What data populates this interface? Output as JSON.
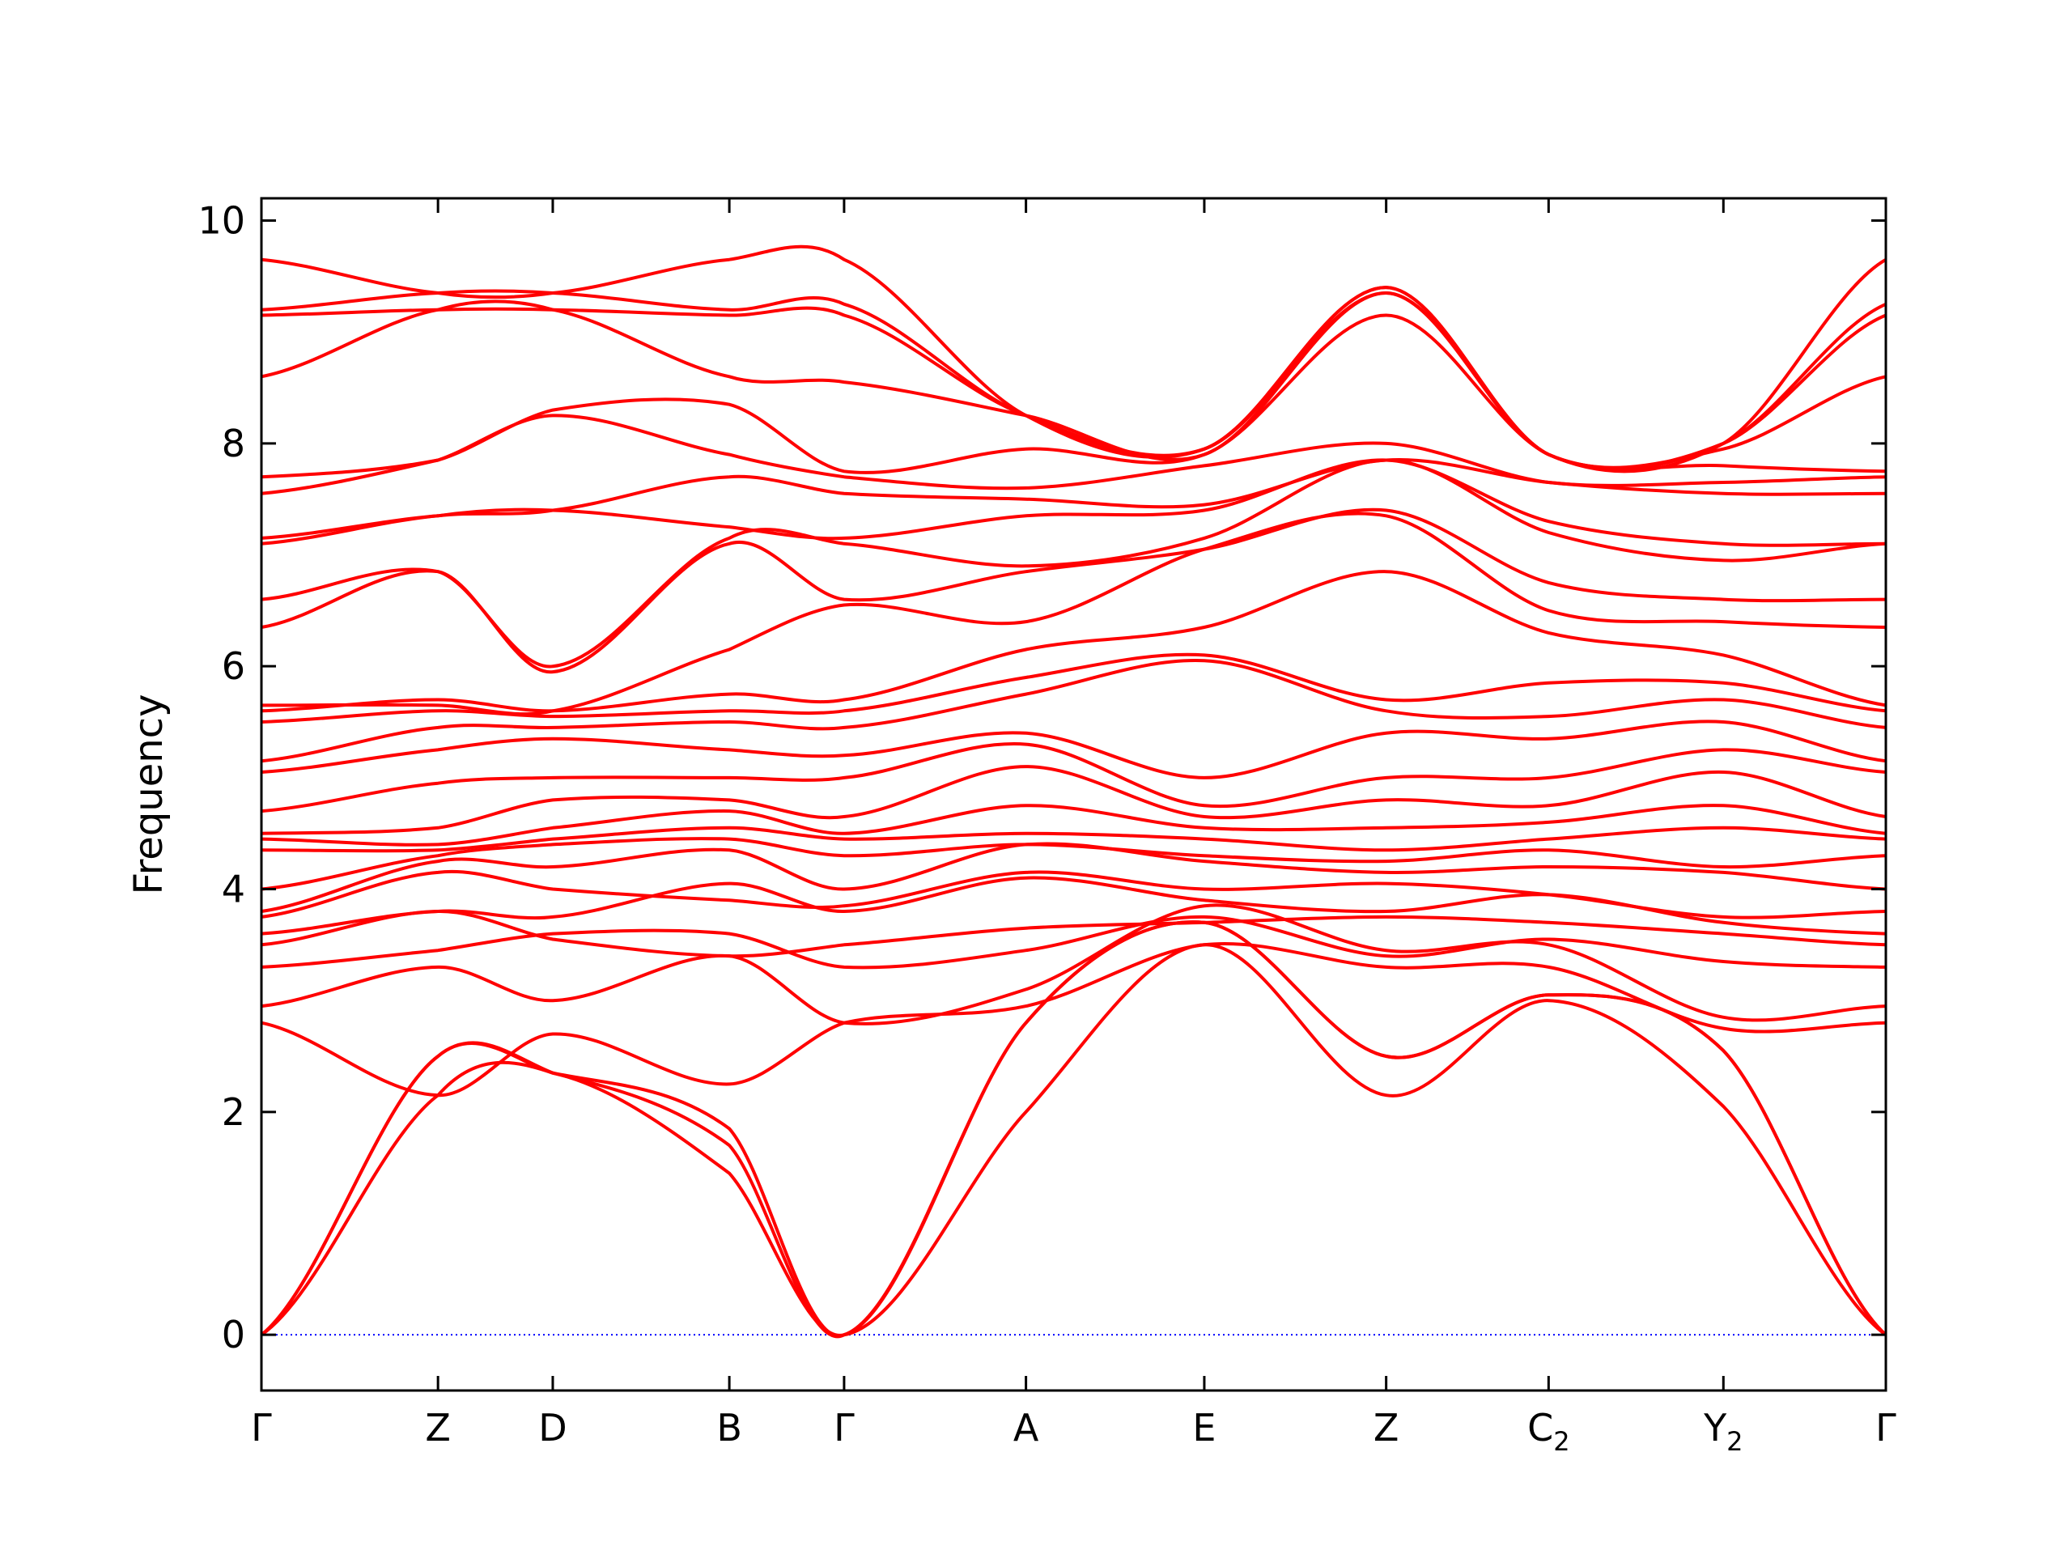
{
  "chart_data": {
    "type": "line",
    "title": "",
    "xlabel": "",
    "ylabel": "Frequency",
    "ylim": [
      -0.5,
      10.2
    ],
    "yticks": [
      0,
      2,
      4,
      6,
      8,
      10
    ],
    "ytick_labels": [
      "0",
      "2",
      "4",
      "6",
      "8",
      "10"
    ],
    "grid": false,
    "legend": "none",
    "line_color": "#ff0000",
    "zero_line_color": "#0000ff",
    "kpoints": [
      {
        "base": "Γ",
        "sub": "",
        "x": 0
      },
      {
        "base": "Z",
        "sub": "",
        "x": 1
      },
      {
        "base": "D",
        "sub": "",
        "x": 1.65
      },
      {
        "base": "B",
        "sub": "",
        "x": 2.65
      },
      {
        "base": "Γ",
        "sub": "",
        "x": 3.3
      },
      {
        "base": "A",
        "sub": "",
        "x": 4.33
      },
      {
        "base": "E",
        "sub": "",
        "x": 5.34
      },
      {
        "base": "Z",
        "sub": "",
        "x": 6.37
      },
      {
        "base": "C",
        "sub": "2",
        "x": 7.29
      },
      {
        "base": "Y",
        "sub": "2",
        "x": 8.28
      },
      {
        "base": "Γ",
        "sub": "",
        "x": 9.2
      }
    ],
    "series": [
      {
        "y": [
          0,
          2.15,
          2.35,
          1.45,
          0,
          2.0,
          3.5,
          2.15,
          3.0,
          2.05,
          0
        ]
      },
      {
        "y": [
          0,
          2.5,
          2.35,
          1.7,
          0,
          2.8,
          3.7,
          2.5,
          3.05,
          2.55,
          0
        ]
      },
      {
        "y": [
          0,
          2.5,
          2.35,
          1.85,
          0,
          2.8,
          3.7,
          2.5,
          3.05,
          2.55,
          0
        ]
      },
      {
        "y": [
          2.8,
          2.15,
          2.7,
          2.25,
          2.8,
          2.95,
          3.5,
          3.3,
          3.3,
          2.75,
          2.8
        ]
      },
      {
        "y": [
          2.95,
          3.3,
          3.0,
          3.4,
          2.8,
          3.1,
          3.85,
          3.45,
          3.5,
          2.85,
          2.95
        ]
      },
      {
        "y": [
          3.3,
          3.45,
          3.6,
          3.6,
          3.3,
          3.45,
          3.75,
          3.4,
          3.55,
          3.35,
          3.3
        ]
      },
      {
        "y": [
          3.5,
          3.8,
          3.55,
          3.4,
          3.5,
          3.65,
          3.7,
          3.75,
          3.7,
          3.6,
          3.5
        ]
      },
      {
        "y": [
          3.6,
          3.8,
          3.75,
          4.05,
          3.8,
          4.1,
          3.9,
          3.8,
          3.95,
          3.7,
          3.6
        ]
      },
      {
        "y": [
          3.75,
          4.15,
          4.0,
          3.9,
          3.85,
          4.15,
          4.0,
          4.05,
          3.95,
          3.75,
          3.8
        ]
      },
      {
        "y": [
          3.8,
          4.25,
          4.2,
          4.35,
          4.0,
          4.4,
          4.25,
          4.15,
          4.2,
          4.15,
          4.0
        ]
      },
      {
        "y": [
          4.0,
          4.3,
          4.4,
          4.45,
          4.3,
          4.4,
          4.3,
          4.25,
          4.35,
          4.2,
          4.3
        ]
      },
      {
        "y": [
          4.35,
          4.35,
          4.45,
          4.55,
          4.45,
          4.5,
          4.45,
          4.35,
          4.45,
          4.55,
          4.45
        ]
      },
      {
        "y": [
          4.45,
          4.4,
          4.55,
          4.7,
          4.5,
          4.75,
          4.55,
          4.55,
          4.6,
          4.75,
          4.5
        ]
      },
      {
        "y": [
          4.5,
          4.55,
          4.8,
          4.8,
          4.65,
          5.1,
          4.65,
          4.8,
          4.75,
          5.05,
          4.65
        ]
      },
      {
        "y": [
          4.7,
          4.95,
          5.0,
          5.0,
          5.0,
          5.3,
          4.75,
          5.0,
          5.0,
          5.25,
          5.05
        ]
      },
      {
        "y": [
          5.05,
          5.25,
          5.35,
          5.25,
          5.2,
          5.4,
          5.0,
          5.4,
          5.35,
          5.5,
          5.15
        ]
      },
      {
        "y": [
          5.15,
          5.45,
          5.45,
          5.5,
          5.45,
          5.75,
          6.05,
          5.6,
          5.55,
          5.7,
          5.45
        ]
      },
      {
        "y": [
          5.5,
          5.6,
          5.55,
          5.6,
          5.6,
          5.9,
          6.1,
          5.7,
          5.85,
          5.85,
          5.6
        ]
      },
      {
        "y": [
          5.6,
          5.7,
          5.6,
          5.75,
          5.7,
          6.15,
          6.35,
          6.85,
          6.3,
          6.1,
          5.65
        ]
      },
      {
        "y": [
          5.65,
          5.65,
          5.6,
          6.15,
          6.55,
          6.4,
          7.05,
          7.35,
          6.5,
          6.4,
          6.35
        ]
      },
      {
        "y": [
          6.35,
          6.85,
          5.95,
          7.1,
          6.6,
          6.85,
          7.05,
          7.4,
          6.75,
          6.6,
          6.6
        ]
      },
      {
        "y": [
          6.6,
          6.85,
          6.0,
          7.15,
          7.1,
          6.9,
          7.15,
          7.85,
          7.2,
          6.95,
          7.1
        ]
      },
      {
        "y": [
          7.1,
          7.35,
          7.4,
          7.25,
          7.15,
          7.35,
          7.4,
          7.85,
          7.3,
          7.1,
          7.1
        ]
      },
      {
        "y": [
          7.15,
          7.35,
          7.4,
          7.7,
          7.55,
          7.5,
          7.45,
          7.85,
          7.65,
          7.55,
          7.55
        ]
      },
      {
        "y": [
          7.55,
          7.85,
          8.25,
          7.9,
          7.7,
          7.6,
          7.8,
          8.0,
          7.65,
          7.65,
          7.7
        ]
      },
      {
        "y": [
          7.7,
          7.85,
          8.3,
          8.35,
          7.75,
          7.95,
          7.9,
          9.15,
          7.9,
          7.8,
          7.75
        ]
      },
      {
        "y": [
          8.6,
          9.2,
          9.2,
          8.6,
          8.55,
          8.25,
          7.9,
          9.35,
          7.9,
          7.95,
          8.6
        ]
      },
      {
        "y": [
          9.15,
          9.2,
          9.2,
          9.15,
          9.15,
          8.25,
          7.95,
          9.35,
          7.9,
          8.0,
          9.15
        ]
      },
      {
        "y": [
          9.2,
          9.35,
          9.35,
          9.2,
          9.25,
          8.25,
          7.95,
          9.4,
          7.9,
          8.0,
          9.25
        ]
      },
      {
        "y": [
          9.65,
          9.35,
          9.35,
          9.65,
          9.65,
          8.25,
          7.95,
          9.4,
          7.9,
          8.0,
          9.65
        ]
      }
    ]
  }
}
